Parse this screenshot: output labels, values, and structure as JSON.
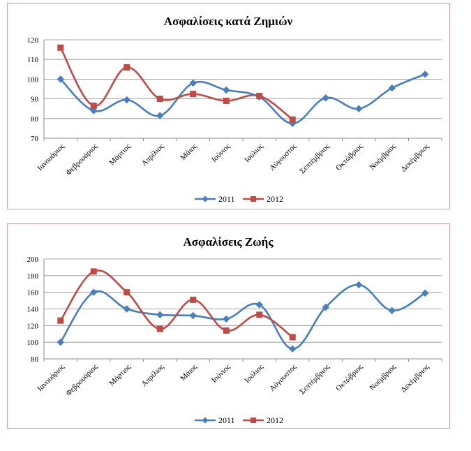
{
  "chart_data": [
    {
      "type": "line",
      "title": "Ασφαλίσεις κατά Ζημιών",
      "categories": [
        "Ιανουάριος",
        "Φεβρουάριος",
        "Μάρτιος",
        "Απρίλιος",
        "Μάιος",
        "Ιούνιος",
        "Ιούλιος",
        "Αύγουστος",
        "Σεπτέμβριος",
        "Οκτώβριος",
        "Νοέμβριος",
        "Δεκέμβριος"
      ],
      "yticks": [
        "70",
        "80",
        "90",
        "100",
        "110",
        "120"
      ],
      "ylim": [
        70,
        120
      ],
      "grid": true,
      "legend": "bottom",
      "series": [
        {
          "name": "2011",
          "color": "#4a7ebb",
          "marker": "diamond",
          "values": [
            100,
            84,
            89.5,
            81.5,
            98,
            94.5,
            91,
            77.5,
            90.5,
            85,
            95.5,
            102.5
          ]
        },
        {
          "name": "2012",
          "color": "#be4b48",
          "marker": "square",
          "values": [
            116,
            86.5,
            106,
            90,
            92.5,
            89,
            91.5,
            79.5,
            null,
            null,
            null,
            null
          ]
        }
      ]
    },
    {
      "type": "line",
      "title": "Ασφαλίσεις Ζωής",
      "categories": [
        "Ιανουάριος",
        "Φεβρουάριος",
        "Μάρτιος",
        "Απρίλιος",
        "Μάιος",
        "Ιούνιος",
        "Ιούλιος",
        "Αύγουστος",
        "Σεπτέμβριος",
        "Οκτώβριος",
        "Νοέμβριος",
        "Δεκέμβριος"
      ],
      "yticks": [
        "80",
        "100",
        "120",
        "140",
        "160",
        "180",
        "200"
      ],
      "ylim": [
        80,
        200
      ],
      "grid": true,
      "legend": "bottom",
      "series": [
        {
          "name": "2011",
          "color": "#4a7ebb",
          "marker": "diamond",
          "values": [
            100,
            160,
            140,
            133,
            132,
            128,
            145,
            92,
            142,
            169,
            138,
            159
          ]
        },
        {
          "name": "2012",
          "color": "#be4b48",
          "marker": "square",
          "values": [
            126,
            185,
            160,
            116,
            151,
            114,
            133,
            106,
            null,
            null,
            null,
            null
          ]
        }
      ]
    }
  ]
}
